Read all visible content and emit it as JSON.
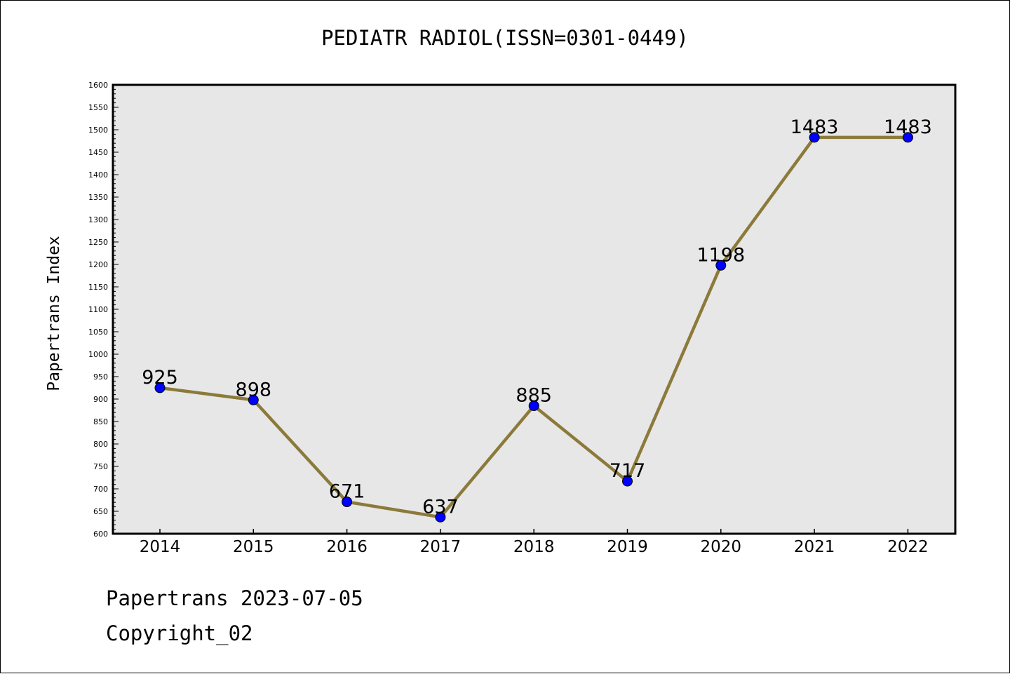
{
  "chart_data": {
    "type": "line",
    "title": "PEDIATR RADIOL(ISSN=0301-0449)",
    "xlabel": "",
    "ylabel": "Papertrans Index",
    "categories": [
      "2014",
      "2015",
      "2016",
      "2017",
      "2018",
      "2019",
      "2020",
      "2021",
      "2022"
    ],
    "series": [
      {
        "values": [
          925,
          898,
          671,
          637,
          885,
          717,
          1198,
          1483,
          1483
        ]
      }
    ],
    "data_labels": [
      "925",
      "898",
      "671",
      "637",
      "885",
      "717",
      "1198",
      "1483",
      "1483"
    ],
    "ylim": [
      600,
      1600
    ],
    "ytick_step": 50,
    "grid": false,
    "legend": "none",
    "colors": {
      "line": "#8b7a3a",
      "marker": "#0000ff",
      "plot_background": "#e7e7e7"
    }
  },
  "footer": {
    "date_line": "Papertrans 2023-07-05",
    "copyright": "Copyright_02"
  }
}
